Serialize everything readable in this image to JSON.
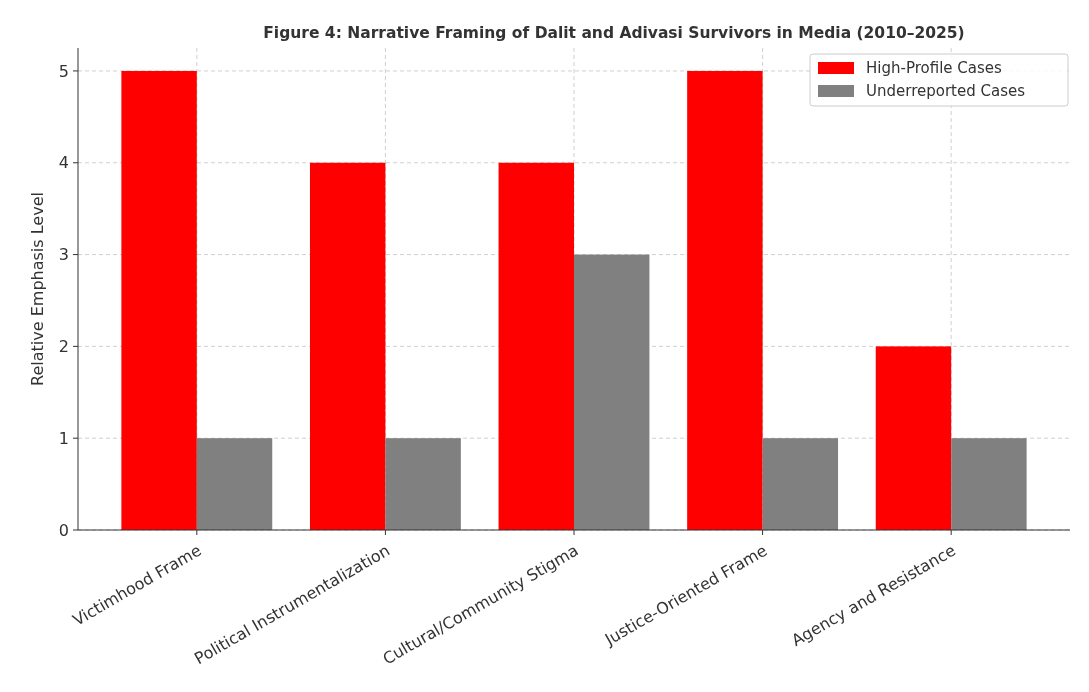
{
  "chart_data": {
    "type": "bar",
    "title": "Figure 4: Narrative Framing of Dalit and Adivasi Survivors in Media (2010–2025)",
    "ylabel": "Relative Emphasis Level",
    "categories": [
      "Victimhood Frame",
      "Political Instrumentalization",
      "Cultural/Community Stigma",
      "Justice-Oriented Frame",
      "Agency and Resistance"
    ],
    "series": [
      {
        "name": "High-Profile Cases",
        "color": "#ff0000",
        "values": [
          5,
          4,
          4,
          5,
          2
        ]
      },
      {
        "name": "Underreported Cases",
        "color": "#808080",
        "values": [
          1,
          1,
          3,
          1,
          1
        ]
      }
    ],
    "ylim": [
      0,
      5.25
    ],
    "yticks": [
      0,
      1,
      2,
      3,
      4,
      5
    ],
    "grid": true,
    "legend": "top right"
  }
}
